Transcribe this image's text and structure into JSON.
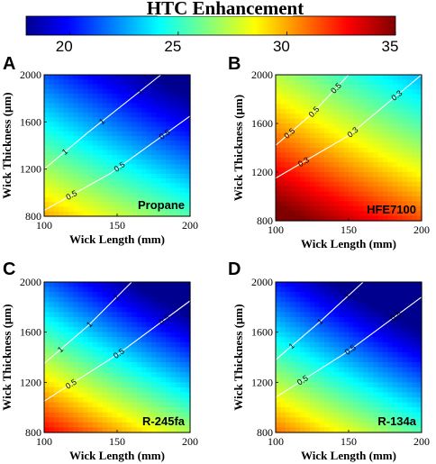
{
  "colorbar": {
    "title": "HTC Enhancement",
    "range": [
      18,
      35
    ],
    "ticks": [
      20,
      25,
      30,
      35
    ],
    "colormap": "jet"
  },
  "chart_data": [
    {
      "type": "heatmap",
      "letter": "A",
      "fluid": "Propane",
      "xlabel": "Wick Length (mm)",
      "ylabel": "Wick Thickness (μm)",
      "xlim": [
        100,
        200
      ],
      "ylim": [
        800,
        2000
      ],
      "xticks": [
        100,
        150,
        200
      ],
      "yticks": [
        800,
        1200,
        1600,
        2000
      ],
      "value_range": [
        17,
        30
      ],
      "contours": [
        {
          "label": "1",
          "points": [
            [
              100,
              1200
            ],
            [
              130,
              1510
            ],
            [
              180,
              2000
            ]
          ]
        },
        {
          "label": "0.5",
          "points": [
            [
              100,
              850
            ],
            [
              145,
              1160
            ],
            [
              200,
              1650
            ]
          ]
        }
      ]
    },
    {
      "type": "heatmap",
      "letter": "B",
      "fluid": "HFE7100",
      "xlabel": "Wick Length (mm)",
      "ylabel": "Wick Thickness (μm)",
      "xlim": [
        100,
        200
      ],
      "ylim": [
        800,
        2000
      ],
      "xticks": [
        100,
        150,
        200
      ],
      "yticks": [
        800,
        1200,
        1600,
        2000
      ],
      "value_range": [
        23,
        36
      ],
      "contours": [
        {
          "label": "0.5",
          "points": [
            [
              100,
              1420
            ],
            [
              125,
              1680
            ],
            [
              150,
              2000
            ]
          ]
        },
        {
          "label": "0.3",
          "points": [
            [
              100,
              1150
            ],
            [
              150,
              1500
            ],
            [
              200,
              2000
            ]
          ]
        }
      ]
    },
    {
      "type": "heatmap",
      "letter": "C",
      "fluid": "R-245fa",
      "xlabel": "Wick Length (mm)",
      "ylabel": "Wick Thickness (μm)",
      "xlim": [
        100,
        200
      ],
      "ylim": [
        800,
        2000
      ],
      "xticks": [
        100,
        150,
        200
      ],
      "yticks": [
        800,
        1200,
        1600,
        2000
      ],
      "value_range": [
        16,
        33
      ],
      "contours": [
        {
          "label": "1",
          "points": [
            [
              100,
              1350
            ],
            [
              130,
              1650
            ],
            [
              160,
              2000
            ]
          ]
        },
        {
          "label": "0.5",
          "points": [
            [
              100,
              1050
            ],
            [
              150,
              1420
            ],
            [
              200,
              1850
            ]
          ]
        }
      ]
    },
    {
      "type": "heatmap",
      "letter": "D",
      "fluid": "R-134a",
      "xlabel": "Wick Length (mm)",
      "ylabel": "Wick Thickness (μm)",
      "xlim": [
        100,
        200
      ],
      "ylim": [
        800,
        2000
      ],
      "xticks": [
        100,
        150,
        200
      ],
      "yticks": [
        800,
        1200,
        1600,
        2000
      ],
      "value_range": [
        15,
        31
      ],
      "contours": [
        {
          "label": "1",
          "points": [
            [
              100,
              1380
            ],
            [
              130,
              1680
            ],
            [
              160,
              2000
            ]
          ]
        },
        {
          "label": "0.5",
          "points": [
            [
              100,
              1080
            ],
            [
              150,
              1450
            ],
            [
              200,
              1880
            ]
          ]
        }
      ]
    }
  ]
}
